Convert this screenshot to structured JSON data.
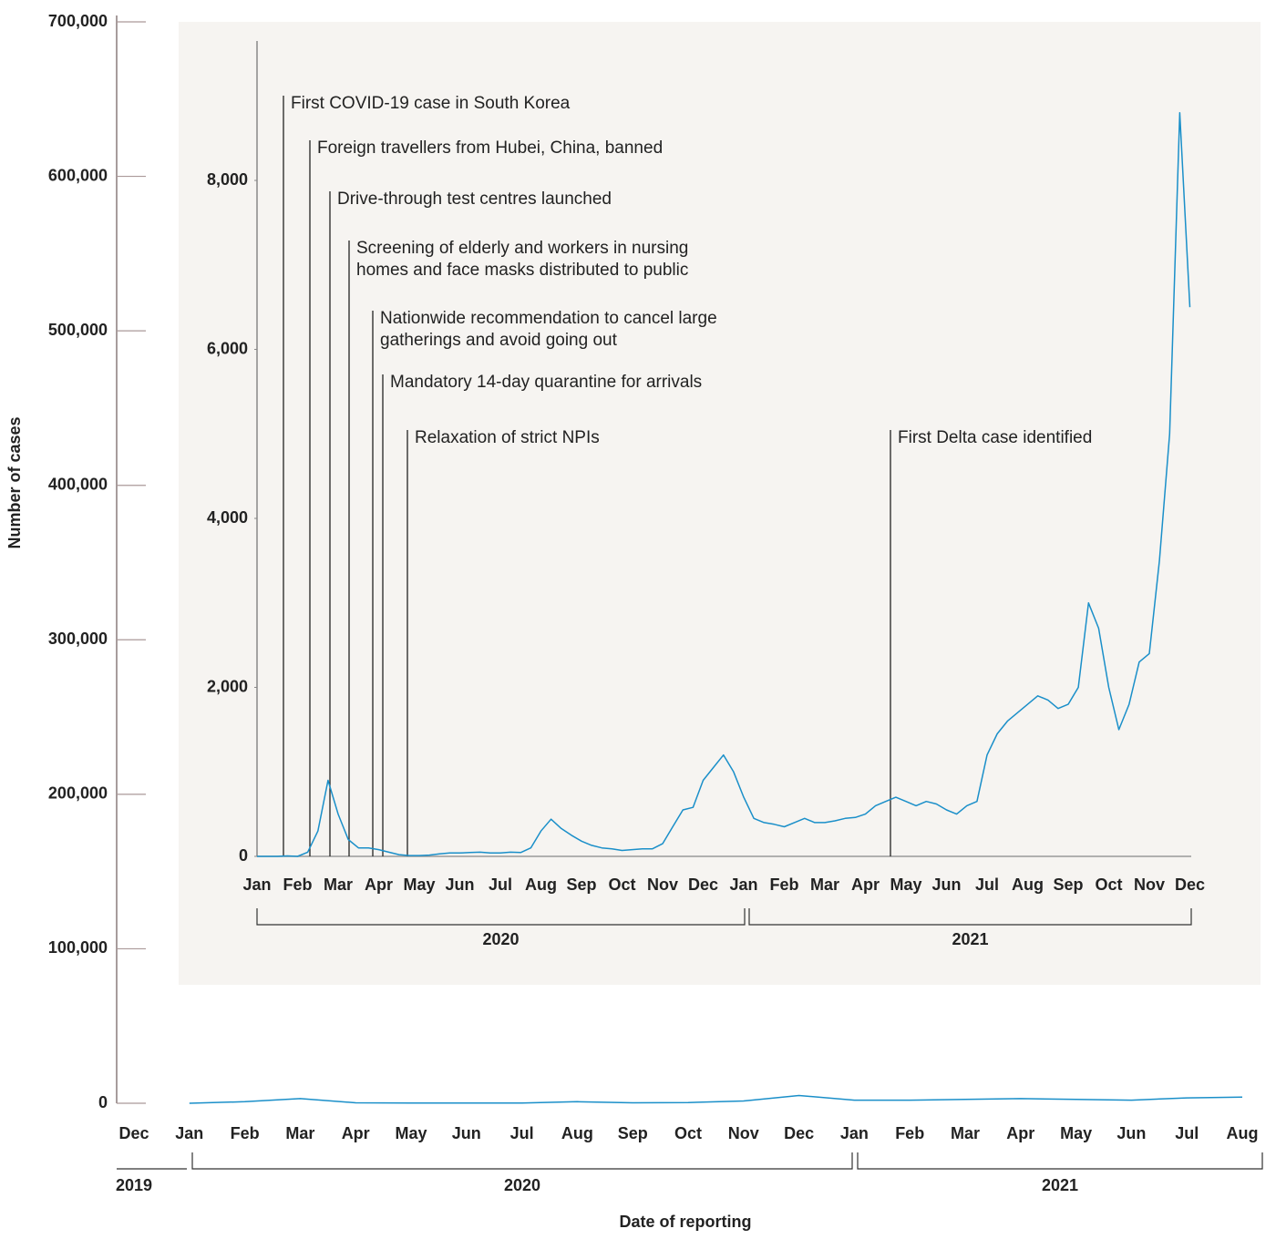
{
  "chart_data": [
    {
      "type": "line",
      "y_label": "Number of cases",
      "x_label": "Date of reporting",
      "categories": [
        "Dec",
        "Jan",
        "Feb",
        "Mar",
        "Apr",
        "May",
        "Jun",
        "Jul",
        "Aug",
        "Sep",
        "Oct",
        "Nov",
        "Dec",
        "Jan",
        "Feb",
        "Mar",
        "Apr",
        "May",
        "Jun",
        "Jul",
        "Aug"
      ],
      "years": [
        "2019",
        "2020",
        "2021"
      ],
      "values": [
        null,
        10,
        1000,
        3000,
        300,
        100,
        200,
        100,
        1000,
        300,
        500,
        1500,
        5000,
        2000,
        2000,
        2500,
        3000,
        2500,
        2000,
        3500,
        4000
      ],
      "color": "#1a8fc9",
      "ylim": [
        0,
        700000
      ],
      "yticks": [
        0,
        {
          "value": 100000,
          "label": "100,000"
        },
        {
          "value": 200000,
          "label": "200,000"
        },
        {
          "value": 300000,
          "label": "300,000"
        },
        {
          "value": 400000,
          "label": "400,000"
        },
        {
          "value": 500000,
          "label": "500,000"
        },
        {
          "value": 600000,
          "label": "600,000"
        },
        {
          "value": 700000,
          "label": "700,000"
        }
      ]
    },
    {
      "type": "line",
      "categories": [
        "Jan",
        null,
        null,
        null,
        "Feb",
        null,
        null,
        null,
        "Mar",
        null,
        null,
        null,
        "Apr",
        null,
        null,
        null,
        "May",
        null,
        null,
        null,
        "Jun",
        null,
        null,
        null,
        "Jul",
        null,
        null,
        null,
        "Aug",
        null,
        null,
        null,
        "Sep",
        null,
        null,
        null,
        "Oct",
        null,
        null,
        null,
        "Nov",
        null,
        null,
        null,
        "Dec",
        null,
        null,
        null,
        "Jan",
        null,
        null,
        null,
        "Feb",
        null,
        null,
        null,
        "Mar",
        null,
        null,
        null,
        "Apr",
        null,
        null,
        null,
        "May",
        null,
        null,
        null,
        "Jun",
        null,
        null,
        null,
        "Jul",
        null,
        null,
        null,
        "Aug",
        null,
        null,
        null,
        "Sep",
        null,
        null,
        null,
        "Oct",
        null,
        null,
        null,
        "Nov",
        null,
        null,
        null,
        "Dec"
      ],
      "years": [
        "2020",
        "2021"
      ],
      "values": [
        0,
        0,
        0,
        5,
        0,
        50,
        300,
        900,
        500,
        200,
        100,
        100,
        80,
        50,
        20,
        10,
        10,
        15,
        30,
        40,
        40,
        45,
        50,
        40,
        40,
        50,
        45,
        100,
        300,
        440,
        330,
        250,
        180,
        130,
        100,
        90,
        70,
        80,
        90,
        90,
        150,
        350,
        550,
        580,
        900,
        1050,
        1200,
        1000,
        700,
        450,
        400,
        380,
        350,
        400,
        450,
        400,
        400,
        420,
        450,
        460,
        500,
        600,
        650,
        700,
        650,
        600,
        650,
        620,
        550,
        500,
        600,
        650,
        1200,
        1450,
        1600,
        1700,
        1800,
        1900,
        1850,
        1750,
        1800,
        2000,
        3000,
        2700,
        2000,
        1500,
        1800,
        2300,
        2400,
        3500,
        5000,
        8800,
        6500
      ],
      "color": "#1a8fc9",
      "ylim": [
        0,
        9650
      ],
      "yticks": [
        0,
        {
          "value": 2000,
          "label": "2,000"
        },
        {
          "value": 4000,
          "label": "4,000"
        },
        {
          "value": 6000,
          "label": "6,000"
        },
        {
          "value": 8000,
          "label": "8,000"
        }
      ],
      "annotations": [
        {
          "lines": [
            "First COVID-19 case in South Korea"
          ]
        },
        {
          "lines": [
            "Foreign travellers from Hubei, China, banned"
          ]
        },
        {
          "lines": [
            "Drive-through test centres launched"
          ]
        },
        {
          "lines": [
            "Screening of elderly and workers in nursing",
            "homes and face masks distributed to public"
          ]
        },
        {
          "lines": [
            "Nationwide recommendation to cancel large",
            "gatherings and avoid going out"
          ]
        },
        {
          "lines": [
            "Mandatory 14-day quarantine for arrivals"
          ]
        },
        {
          "lines": [
            "Relaxation of strict NPIs"
          ]
        },
        {
          "lines": [
            "First Delta case identified"
          ]
        }
      ]
    }
  ]
}
